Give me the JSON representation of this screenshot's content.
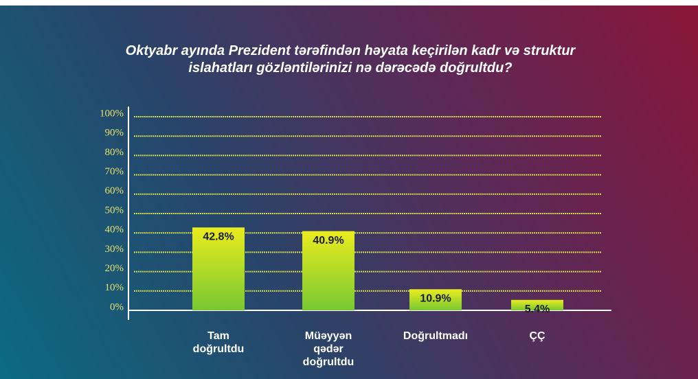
{
  "chart_data": {
    "type": "bar",
    "title": "Oktyabr ayında Prezident tərəfindən həyata keçirilən kadr və struktur islahatları gözləntilərinizi nə dərəcədə doğrultdu?",
    "categories": [
      "Tam doğrultdu",
      "Müəyyən qədər doğrultdu",
      "Doğrultmadı",
      "ÇÇ"
    ],
    "values": [
      42.8,
      40.9,
      10.9,
      5.4
    ],
    "value_labels": [
      "42.8%",
      "40.9%",
      "10.9%",
      "5.4%"
    ],
    "color": "#c8e02a",
    "ylim": [
      0,
      100
    ],
    "yticks": [
      {
        "value": 0,
        "label": "0%"
      },
      {
        "value": 10,
        "label": "10%"
      },
      {
        "value": 20,
        "label": "20%"
      },
      {
        "value": 30,
        "label": "30%"
      },
      {
        "value": 40,
        "label": "40%"
      },
      {
        "value": 50,
        "label": "50%"
      },
      {
        "value": 60,
        "label": "60%"
      },
      {
        "value": 70,
        "label": "70%"
      },
      {
        "value": 80,
        "label": "80%"
      },
      {
        "value": 90,
        "label": "90%"
      },
      {
        "value": 100,
        "label": "100%"
      }
    ],
    "grid": true
  }
}
